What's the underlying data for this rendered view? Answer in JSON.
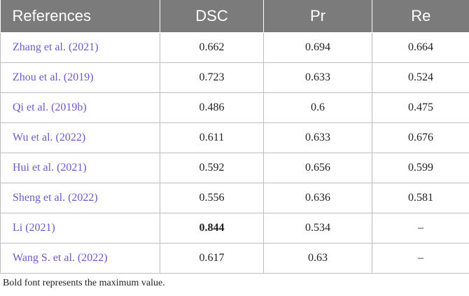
{
  "table": {
    "headers": [
      "References",
      "DSC",
      "Pr",
      "Re"
    ],
    "rows": [
      {
        "ref_author": "Zhang et al. (",
        "ref_year": "2021",
        "ref_close": ")",
        "dsc": "0.662",
        "pr": "0.694",
        "re": "0.664"
      },
      {
        "ref_author": "Zhou et al. (",
        "ref_year": "2019",
        "ref_close": ")",
        "dsc": "0.723",
        "pr": "0.633",
        "re": "0.524"
      },
      {
        "ref_author": "Qi et al. (",
        "ref_year": "2019b",
        "ref_close": ")",
        "dsc": "0.486",
        "pr": "0.6",
        "re": "0.475"
      },
      {
        "ref_author": "Wu et al. (",
        "ref_year": "2022",
        "ref_close": ")",
        "dsc": "0.611",
        "pr": "0.633",
        "re": "0.676"
      },
      {
        "ref_author": "Hui et al. (",
        "ref_year": "2021",
        "ref_close": ")",
        "dsc": "0.592",
        "pr": "0.656",
        "re": "0.599"
      },
      {
        "ref_author": "Sheng et al. (",
        "ref_year": "2022",
        "ref_close": ")",
        "dsc": "0.556",
        "pr": "0.636",
        "re": "0.581"
      },
      {
        "ref_author": "Li (",
        "ref_year": "2021",
        "ref_close": ")",
        "dsc": "0.844",
        "pr": "0.534",
        "re": "–"
      },
      {
        "ref_author": "Wang S. et al. (",
        "ref_year": "2022",
        "ref_close": ")",
        "dsc": "0.617",
        "pr": "0.63",
        "re": "–"
      }
    ]
  },
  "footnote": "Bold font represents the maximum value.",
  "colors": {
    "header_bg": "#7b7b7b",
    "link": "#6a5acd",
    "border": "#bdbdbd"
  }
}
